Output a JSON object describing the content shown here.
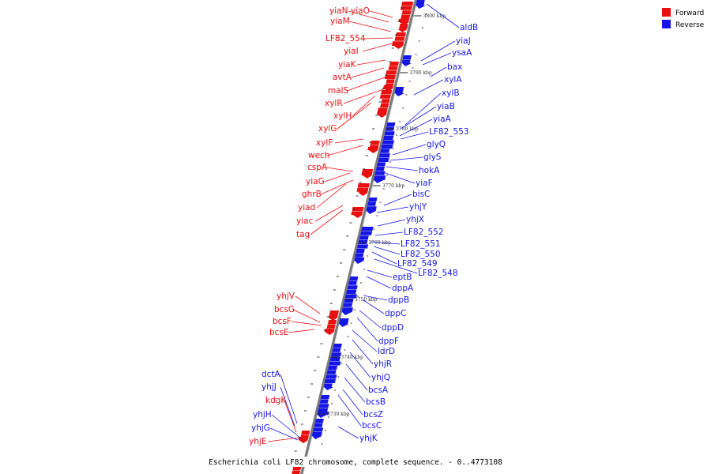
{
  "colors": {
    "forward": "#e81010",
    "reverse": "#1515e6",
    "backbone": "#7a7a7a"
  },
  "legend": [
    {
      "label": "Forward",
      "color": "#e81010"
    },
    {
      "label": "Reverse",
      "color": "#1515e6"
    }
  ],
  "caption": "Escherichia coli LF82 chromosome, complete sequence. - 0..4773108",
  "ticks": [
    "3800 kbp",
    "3790 kbp",
    "3780 kbp",
    "3770 kbp",
    "3760 kbp",
    "3750 kbp",
    "3740 kbp",
    "3730 kbp"
  ],
  "forward_genes": [
    "yiaN",
    "yiaO",
    "yiaM",
    "LF82_554",
    "yiaI",
    "yiaK",
    "avtA",
    "malS",
    "xylR",
    "xylH",
    "xylG",
    "xylF",
    "wech",
    "cspA",
    "yiaG",
    "ghrB",
    "yiad",
    "yiac",
    "tag",
    "yhjV",
    "bcsG",
    "bcsF",
    "bcsE",
    "kdgK",
    "yhjE"
  ],
  "reverse_genes": [
    "aldB",
    "yiaJ",
    "ysaA",
    "bax",
    "xylA",
    "xylB",
    "yiaB",
    "yiaA",
    "LF82_553",
    "glyQ",
    "glyS",
    "hokA",
    "yiaF",
    "bisC",
    "yhjY",
    "yhjX",
    "LF82_552",
    "LF82_551",
    "LF82_550",
    "LF82_549",
    "LF82_548",
    "eptB",
    "dppA",
    "dppB",
    "dppC",
    "dppD",
    "dppF",
    "ldrD",
    "yhjR",
    "yhjQ",
    "bcsA",
    "bcsB",
    "bcsZ",
    "bcsC",
    "yhjK",
    "dctA",
    "yhjJ",
    "yhjH",
    "yhjG"
  ]
}
